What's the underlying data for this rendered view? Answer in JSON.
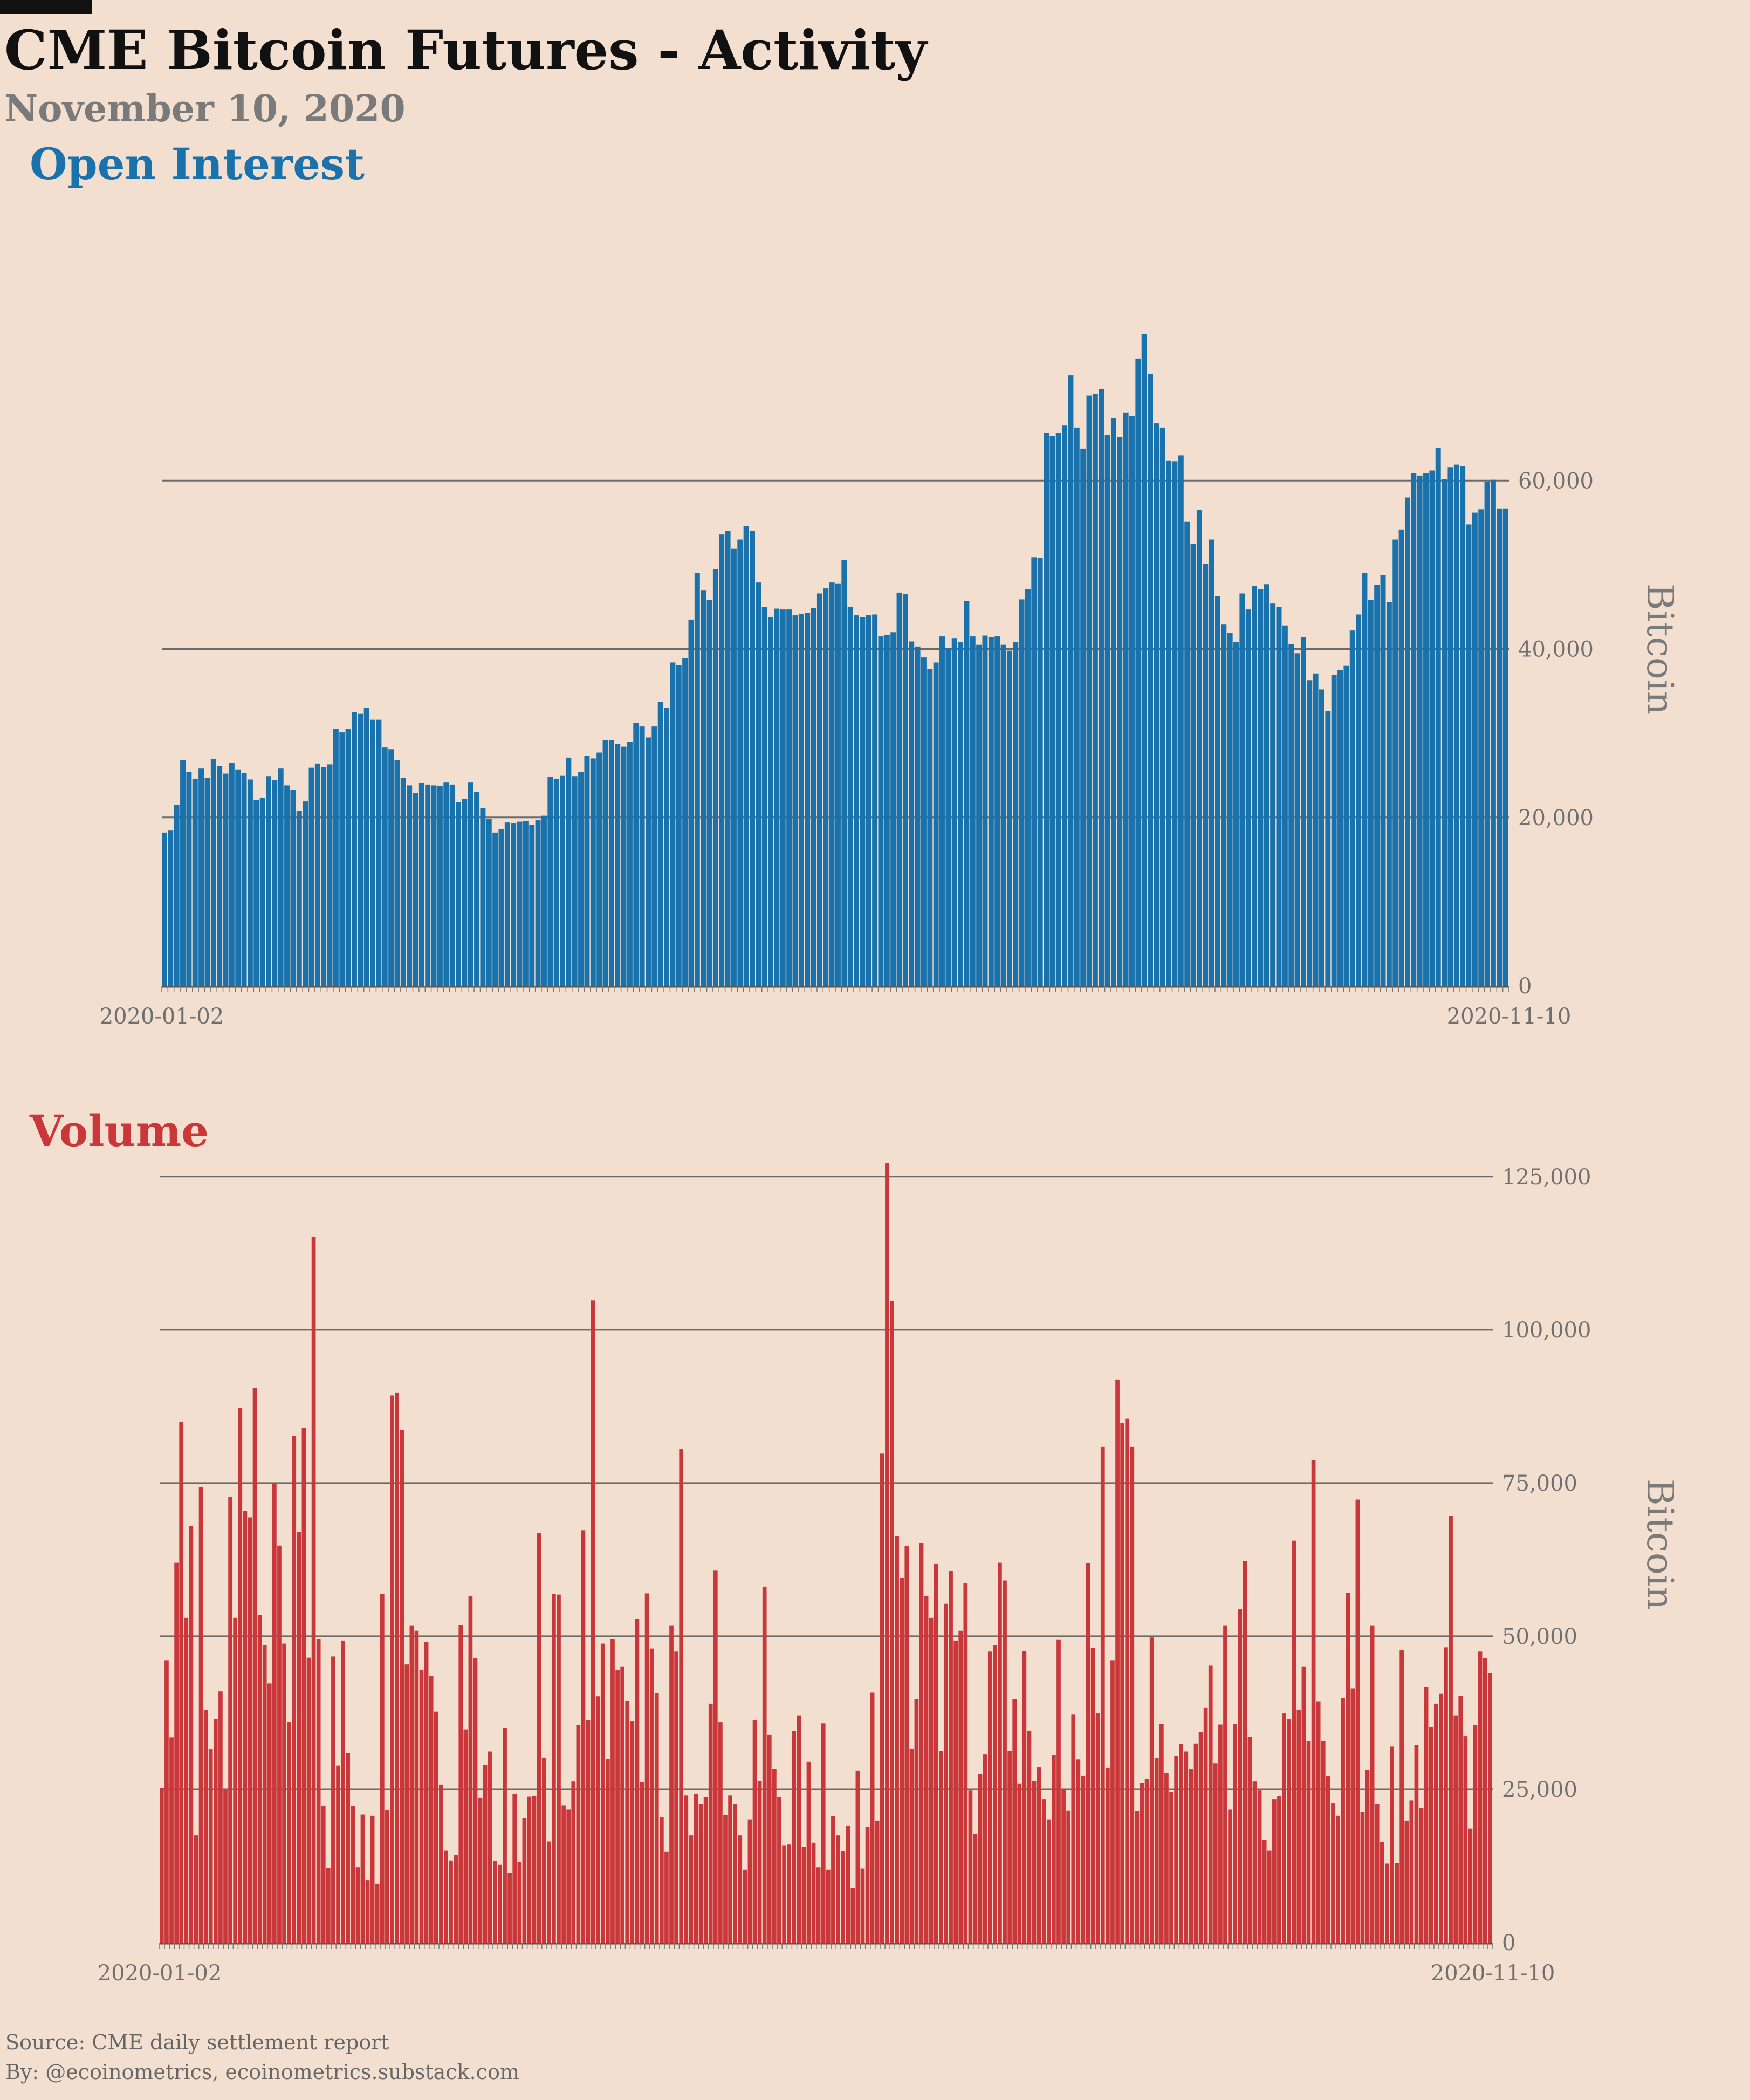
{
  "header": {
    "title": "CME Bitcoin Futures - Activity",
    "subtitle": "November 10, 2020"
  },
  "footer": {
    "source": "Source: CME daily settlement report",
    "by": "By: @ecoinometrics, ecoinometrics.substack.com"
  },
  "colors": {
    "background": "#f3dfcf",
    "open_interest": "#1a72ad",
    "volume": "#c9373a",
    "grid": "#6b6b6b"
  },
  "chart_data": [
    {
      "type": "bar",
      "title": "Open Interest",
      "ylabel": "Bitcoin",
      "xlabel": "",
      "x_tick_labels": [
        "2020-01-02",
        "2020-11-10"
      ],
      "ylim": [
        0,
        80000
      ],
      "yticks": [
        0,
        20000,
        40000,
        60000
      ],
      "ytick_labels": [
        "0",
        "20,000",
        "40,000",
        "60,000"
      ],
      "grid": true,
      "y_axis_position": "right",
      "values": [
        18200,
        18500,
        21500,
        26800,
        25400,
        24600,
        25800,
        24700,
        26900,
        26100,
        25200,
        26500,
        25700,
        25300,
        24500,
        22100,
        22300,
        24900,
        24400,
        25800,
        23800,
        23300,
        20800,
        21900,
        25900,
        26400,
        26000,
        26300,
        30500,
        30100,
        30500,
        32500,
        32300,
        33000,
        31600,
        31600,
        28300,
        28100,
        26800,
        24700,
        23800,
        22900,
        24100,
        23900,
        23800,
        23700,
        24200,
        23900,
        21800,
        22200,
        24200,
        23000,
        21100,
        19800,
        18200,
        18600,
        19400,
        19300,
        19500,
        19600,
        19100,
        19700,
        20200,
        24800,
        24600,
        25000,
        27100,
        24900,
        25400,
        27300,
        27000,
        27700,
        29200,
        29200,
        28700,
        28400,
        29000,
        31200,
        30800,
        29500,
        30800,
        33700,
        33000,
        38400,
        38100,
        38900,
        43500,
        49000,
        47000,
        45800,
        49500,
        53600,
        54000,
        51900,
        53000,
        54600,
        54000,
        47900,
        45000,
        43800,
        44800,
        44700,
        44700,
        44000,
        44200,
        44300,
        44900,
        46600,
        47200,
        47900,
        47800,
        50600,
        45000,
        44000,
        43800,
        44000,
        44100,
        41500,
        41700,
        42000,
        46700,
        46500,
        40900,
        40300,
        39000,
        37600,
        38400,
        41500,
        40100,
        41300,
        40800,
        45700,
        41500,
        40500,
        41600,
        41400,
        41500,
        40500,
        39800,
        40800,
        45900,
        47100,
        50900,
        50800,
        65700,
        65300,
        65700,
        66600,
        72500,
        66300,
        63800,
        70100,
        70300,
        70900,
        65400,
        67400,
        65200,
        68100,
        67700,
        74500,
        77400,
        72700,
        66800,
        66300,
        62400,
        62300,
        63000,
        55100,
        52500,
        56500,
        50100,
        53000,
        46300,
        42900,
        41900,
        40800,
        46600,
        44700,
        47500,
        47100,
        47700,
        45400,
        45000,
        42800,
        40600,
        39500,
        41400,
        36300,
        37100,
        35200,
        32600,
        36900,
        37500,
        38000,
        42200,
        44100,
        49000,
        45800,
        47600,
        48800,
        45600,
        53000,
        54200,
        58000,
        60900,
        60600,
        60900,
        61200,
        63900,
        60200,
        61600,
        61900,
        61700,
        54800,
        56200,
        56600,
        59900,
        60100,
        56700,
        56700
      ]
    },
    {
      "type": "bar",
      "title": "Volume",
      "ylabel": "Bitcoin",
      "xlabel": "",
      "x_tick_labels": [
        "2020-01-02",
        "2020-11-10"
      ],
      "ylim": [
        0,
        130000
      ],
      "yticks": [
        0,
        25000,
        50000,
        75000,
        100000,
        125000
      ],
      "ytick_labels": [
        "0",
        "25,000",
        "50,000",
        "75,000",
        "100,000",
        "125,000"
      ],
      "grid": true,
      "y_axis_position": "right",
      "values": [
        25200,
        46000,
        33500,
        62000,
        85000,
        53000,
        68000,
        17500,
        74300,
        38000,
        31500,
        36500,
        41000,
        24900,
        72700,
        53000,
        87300,
        70500,
        69400,
        90500,
        53500,
        48500,
        42300,
        75000,
        64800,
        48800,
        36000,
        82700,
        67000,
        84000,
        46500,
        115200,
        49500,
        22300,
        12200,
        46700,
        28900,
        49300,
        30900,
        22300,
        12300,
        20900,
        10200,
        20700,
        9600,
        56900,
        21600,
        89300,
        89700,
        83700,
        45400,
        51700,
        50900,
        44500,
        49100,
        43500,
        37700,
        25800,
        15000,
        13400,
        14300,
        51800,
        34800,
        56500,
        46400,
        23600,
        29000,
        31200,
        13300,
        12700,
        35000,
        11300,
        24300,
        13200,
        20300,
        23800,
        23900,
        66800,
        30100,
        16500,
        56900,
        56800,
        22400,
        21700,
        26300,
        35500,
        67300,
        36300,
        104800,
        40200,
        48800,
        30000,
        49500,
        44500,
        45000,
        39400,
        36100,
        52800,
        26200,
        57000,
        48000,
        40700,
        20500,
        14800,
        51700,
        47500,
        80600,
        24000,
        17500,
        24300,
        22600,
        23700,
        39000,
        60700,
        35900,
        20800,
        24000,
        22600,
        17500,
        11900,
        20100,
        36300,
        26400,
        58100,
        33900,
        28300,
        23700,
        15800,
        16000,
        34500,
        37000,
        15600,
        29500,
        16300,
        12300,
        35800,
        11900,
        20600,
        17500,
        14900,
        19100,
        8900,
        28000,
        12100,
        18900,
        40800,
        19900,
        79800,
        127200,
        104700,
        66300,
        59500,
        64700,
        31600,
        39700,
        65200,
        56600,
        53000,
        61800,
        31300,
        55300,
        60600,
        49300,
        50900,
        58700,
        24800,
        17700,
        27500,
        30700,
        47500,
        48500,
        62000,
        59100,
        31300,
        39700,
        25900,
        47600,
        34600,
        26400,
        28600,
        23400,
        20100,
        30600,
        49400,
        25100,
        21500,
        37200,
        29900,
        27200,
        61900,
        48100,
        37400,
        80900,
        28500,
        46000,
        91900,
        84800,
        85500,
        80900,
        21400,
        26000,
        26700,
        49800,
        30100,
        35700,
        27700,
        24600,
        30400,
        32400,
        31200,
        28300,
        32500,
        34400,
        38300,
        45200,
        29200,
        35600,
        51700,
        21700,
        35700,
        54400,
        62300,
        33600,
        26300,
        24800,
        16800,
        15000,
        23400,
        23900,
        37400,
        36500,
        65600,
        38000,
        45000,
        32900,
        78700,
        39300,
        32900,
        27100,
        22700,
        20700,
        39900,
        57100,
        41500,
        72300,
        21300,
        28100,
        51700,
        22600,
        16400,
        12900,
        32000,
        13000,
        47700,
        19900,
        23200,
        32300,
        22000,
        41700,
        35200,
        39000,
        40600,
        48200,
        69600,
        37000,
        40300,
        33700,
        18600,
        35500,
        47500,
        46400,
        44000
      ]
    }
  ]
}
